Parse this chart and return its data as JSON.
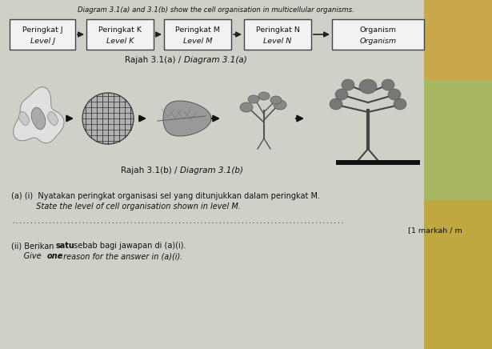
{
  "title_italic": "Diagram 3.1(a) and 3.1(b) show the cell organisation in multicellular organisms.",
  "boxes": [
    {
      "line1": "Peringkat J",
      "line2": "Level J"
    },
    {
      "line1": "Peringkat K",
      "line2": "Level K"
    },
    {
      "line1": "Peringkat M",
      "line2": "Level M"
    },
    {
      "line1": "Peringkat N",
      "line2": "Level N"
    },
    {
      "line1": "Organism",
      "line2": "Organism"
    }
  ],
  "diagram_a_label": "Rajah 3.1(a) / ",
  "diagram_a_label_italic": "Diagram 3.1(a)",
  "diagram_b_label": "Rajah 3.1(b) / ",
  "diagram_b_label_italic": "Diagram 3.1(b)",
  "question_a_i_text": "Nyatakan peringkat organisasi sel yang ditunjukkan dalam peringkat M.",
  "question_a_i_italic": "State the level of cell organisation shown in level M.",
  "marks_text": "[1 markah / m",
  "question_a_ii_text": " sebab bagi jawapan di (a)(i).",
  "question_a_ii_italic_text": " reason for the answer in (a)(i).",
  "bg_color": "#c8c8c8",
  "box_facecolor": "#f2f2f2",
  "box_edgecolor": "#444444",
  "text_color": "#111111"
}
